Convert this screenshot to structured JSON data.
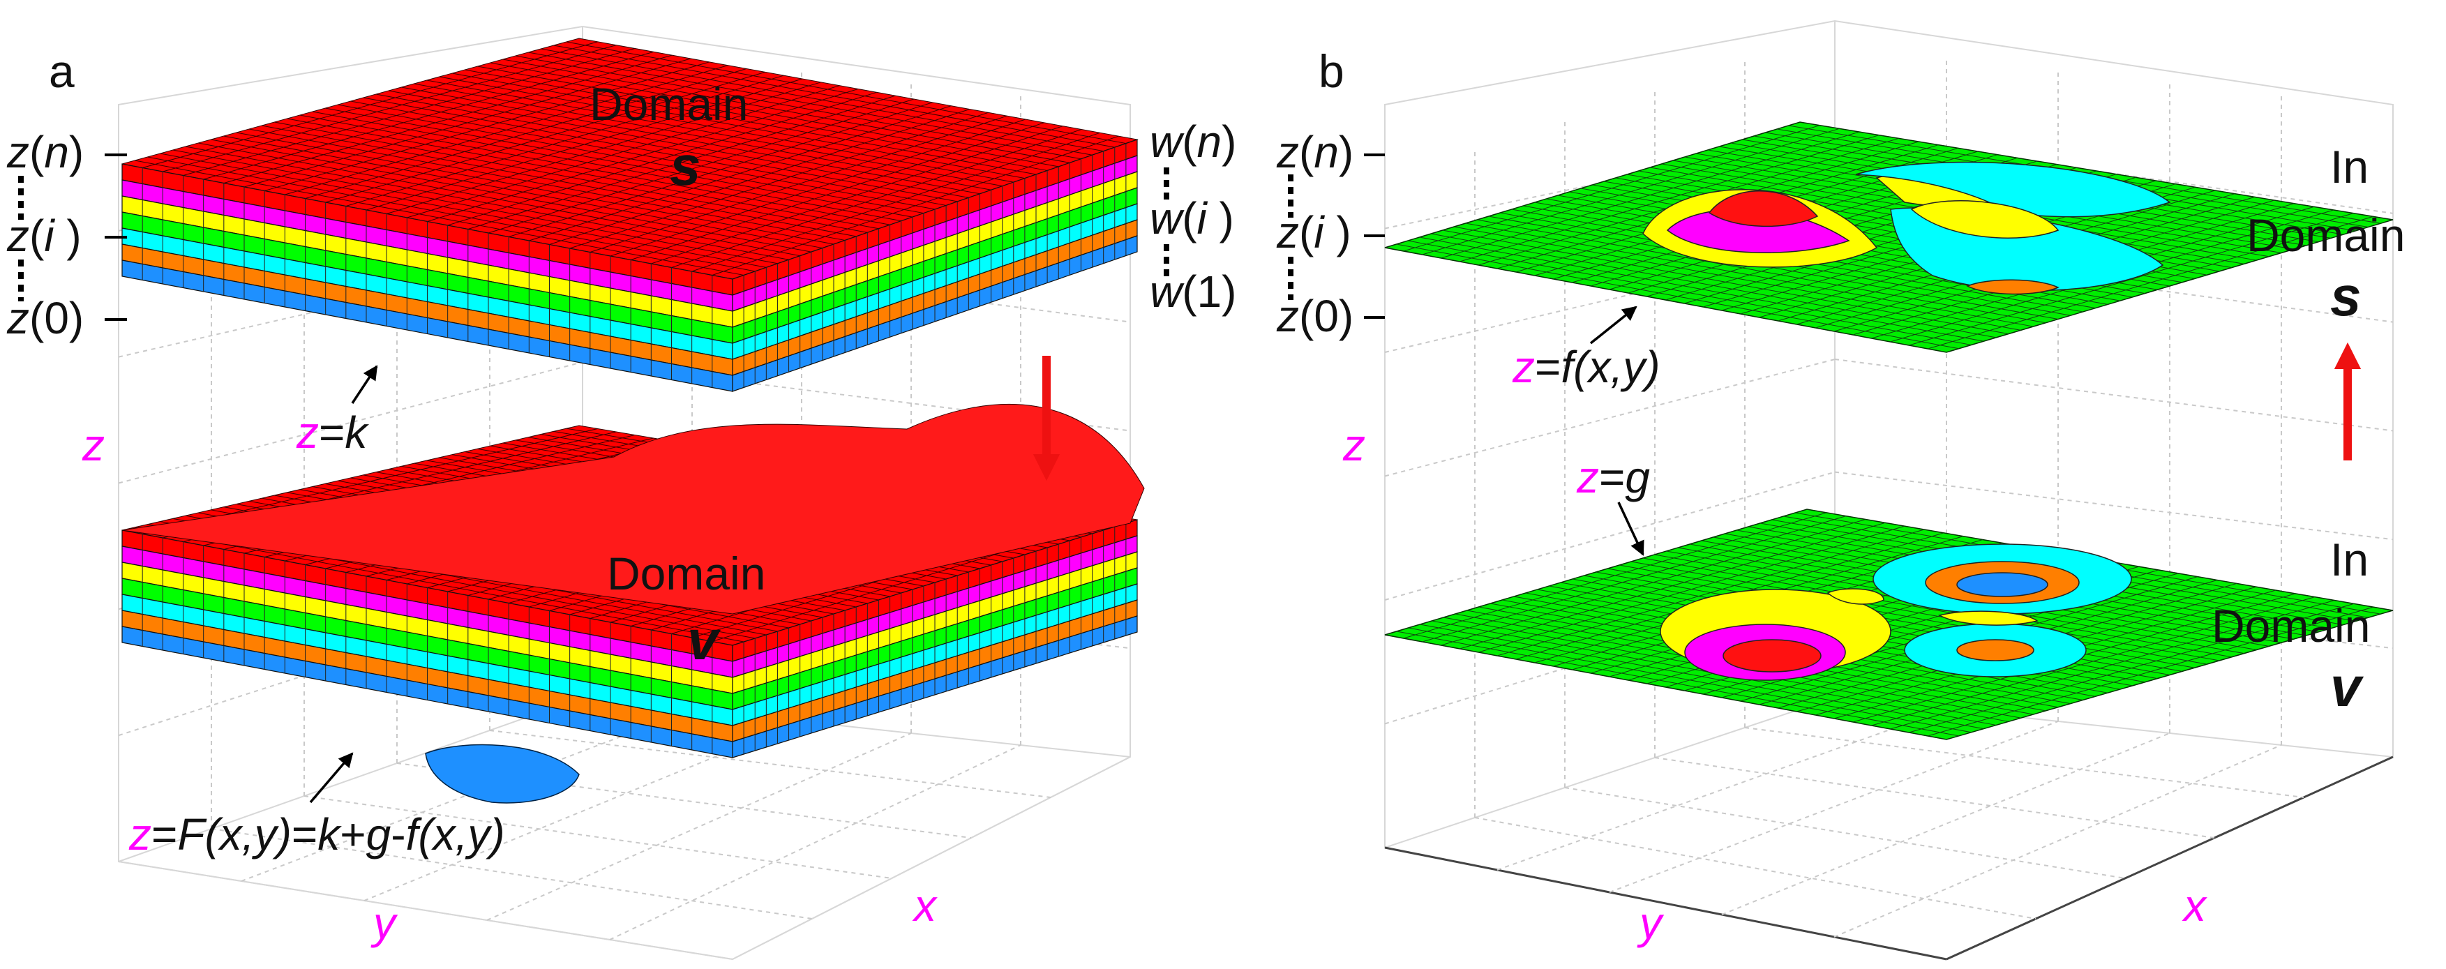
{
  "panels": [
    {
      "id": "a",
      "letter": "a",
      "top_domain": "Domain",
      "top_domain_var": "s",
      "bottom_domain": "Domain",
      "bottom_domain_var": "v",
      "z_labels": {
        "zn_var": "z",
        "zn_arg": "n",
        "zi_var": "z",
        "zi_arg": "i",
        "z0_var": "z",
        "z0_arg": "0"
      },
      "w_labels": {
        "wn_var": "w",
        "wn_arg": "n",
        "wi_var": "w",
        "wi_arg": "i",
        "w1_var": "w",
        "w1_arg": "1"
      },
      "eq_k": {
        "z": "z",
        "eq": "=",
        "k": "k"
      },
      "eq_F": {
        "z": "z",
        "rest_a": "=",
        "F": "F",
        "xy1": "(x,y)",
        "mid": "=",
        "k": "k",
        "plus": "+",
        "g": "g",
        "minus": "-",
        "f": "f",
        "xy2": "(x,y)"
      },
      "axis_z": "z",
      "axis_y": "y",
      "axis_x": "x",
      "layer_colors": [
        "#ff0000",
        "#ff00ff",
        "#ffff00",
        "#00ff00",
        "#00ffff",
        "#ff7f00",
        "#1e90ff"
      ]
    },
    {
      "id": "b",
      "letter": "b",
      "top_in": "In",
      "top_domain": "Domain",
      "top_domain_var": "s",
      "bottom_in": "In",
      "bottom_domain": "Domain",
      "bottom_domain_var": "v",
      "z_labels": {
        "zn_var": "z",
        "zn_arg": "n",
        "zi_var": "z",
        "zi_arg": "i",
        "z0_var": "z",
        "z0_arg": "0"
      },
      "eq_f": {
        "z": "z",
        "eq": "=",
        "f": "f",
        "xy": "(x,y)"
      },
      "eq_g": {
        "z": "z",
        "eq": "=",
        "g": "g"
      },
      "axis_z": "z",
      "axis_y": "y",
      "axis_x": "x",
      "surface_color": "#00ee00"
    }
  ],
  "arrow_colors": {
    "down": "#ee1111",
    "up": "#ee1111"
  }
}
